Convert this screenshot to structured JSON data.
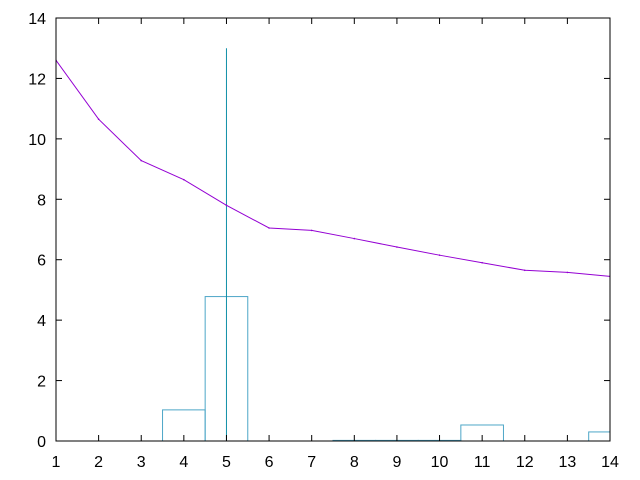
{
  "chart_data": {
    "type": "line",
    "xlim": [
      1,
      14
    ],
    "ylim": [
      0,
      14
    ],
    "x_ticks": [
      1,
      2,
      3,
      4,
      5,
      6,
      7,
      8,
      9,
      10,
      11,
      12,
      13,
      14
    ],
    "y_ticks": [
      0,
      2,
      4,
      6,
      8,
      10,
      12,
      14
    ],
    "grid": false,
    "legend": "none",
    "series": [
      {
        "kind": "line",
        "color": "#9400d3",
        "x": [
          1,
          2,
          3,
          4,
          5,
          6,
          7,
          8,
          9,
          10,
          11,
          12,
          13,
          14
        ],
        "y": [
          12.6,
          10.65,
          9.28,
          8.65,
          7.8,
          7.05,
          6.97,
          6.7,
          6.42,
          6.15,
          5.9,
          5.65,
          5.58,
          5.45
        ]
      },
      {
        "kind": "histogram",
        "color": "#4da6c7",
        "bins": [
          {
            "x0": 3.5,
            "x1": 4.5,
            "y": 1.03
          },
          {
            "x0": 4.5,
            "x1": 5.5,
            "y": 4.78
          },
          {
            "x0": 7.5,
            "x1": 8.5,
            "y": 0.02
          },
          {
            "x0": 8.5,
            "x1": 9.5,
            "y": 0.02
          },
          {
            "x0": 9.5,
            "x1": 10.5,
            "y": 0.02
          },
          {
            "x0": 10.5,
            "x1": 11.5,
            "y": 0.53
          },
          {
            "x0": 13.5,
            "x1": 14.5,
            "y": 0.3
          }
        ]
      },
      {
        "kind": "impulse",
        "color": "#0f8fa6",
        "x": 5,
        "y": 13
      }
    ]
  }
}
